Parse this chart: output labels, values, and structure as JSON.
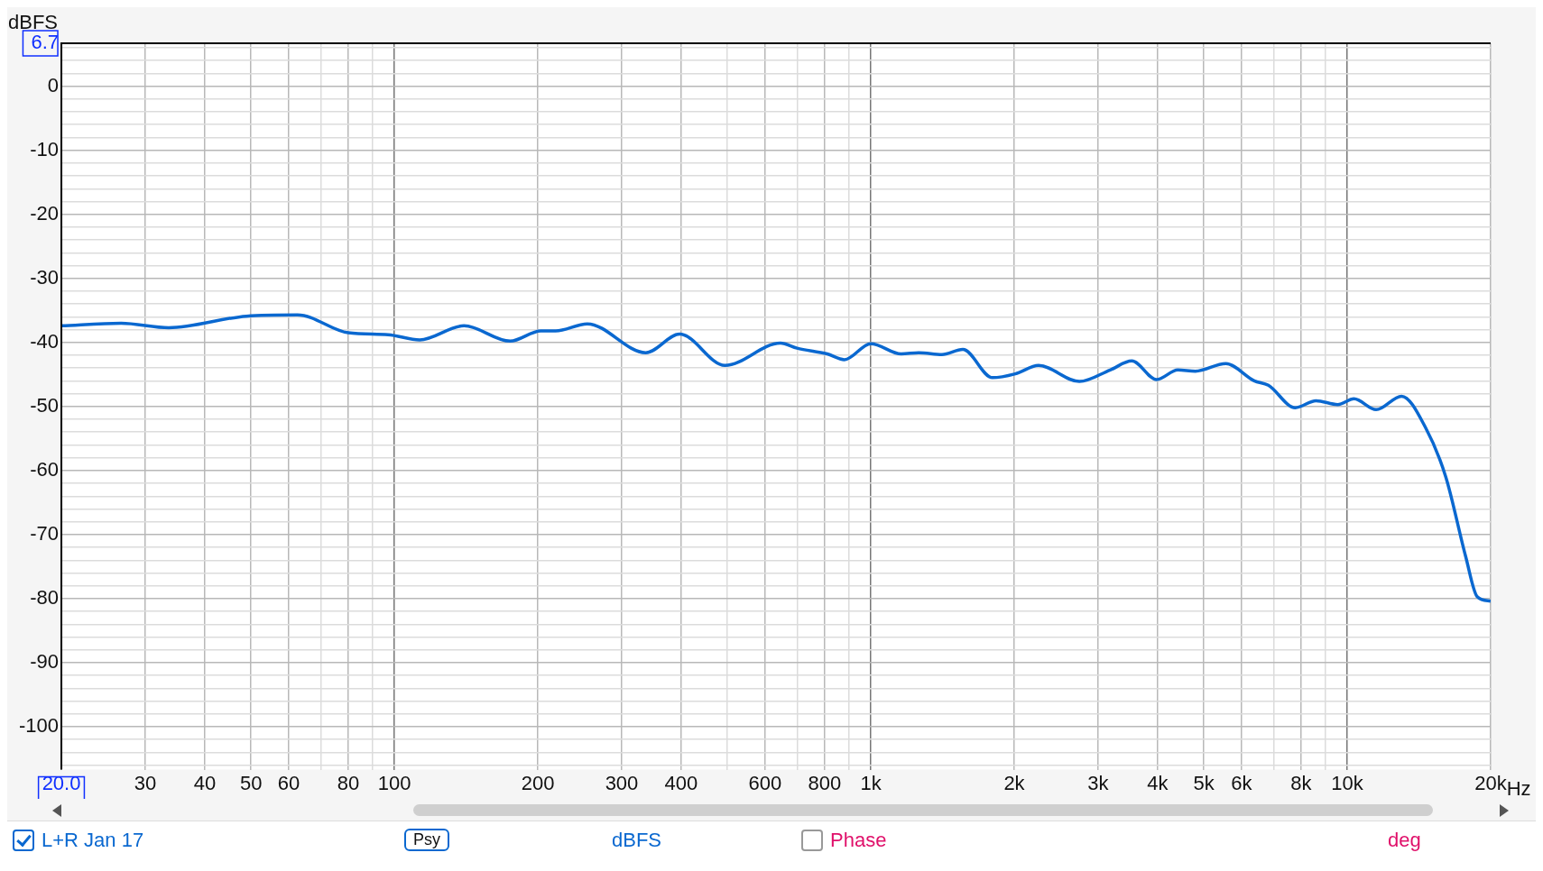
{
  "chart_data": {
    "type": "line",
    "ylabel": "dBFS",
    "log": "x",
    "grid": true,
    "legend": "bottom",
    "marker": "none",
    "line_style": "solid",
    "xlim": [
      20,
      20000
    ],
    "ylim": [
      -106.7,
      6.7
    ],
    "xticks": [
      {
        "value": 20,
        "label": "20.0"
      },
      30,
      40,
      50,
      60,
      {
        "value": 70,
        "label": null
      },
      80,
      {
        "value": 90,
        "label": null
      },
      100,
      200,
      300,
      400,
      {
        "value": 500,
        "label": null
      },
      600,
      {
        "value": 700,
        "label": null
      },
      800,
      {
        "value": 900,
        "label": null
      },
      {
        "value": 1000,
        "label": "1k"
      },
      {
        "value": 2000,
        "label": "2k"
      },
      {
        "value": 3000,
        "label": "3k"
      },
      {
        "value": 4000,
        "label": "4k"
      },
      {
        "value": 5000,
        "label": "5k"
      },
      {
        "value": 6000,
        "label": "6k"
      },
      {
        "value": 7000,
        "label": null
      },
      {
        "value": 8000,
        "label": "8k"
      },
      {
        "value": 9000,
        "label": null
      },
      {
        "value": 10000,
        "label": "10k"
      },
      {
        "value": 20000,
        "label": "20k"
      }
    ],
    "xlabel": "Hz",
    "yticks": [
      6.7,
      {
        "value": 6,
        "label": null
      },
      {
        "value": 4,
        "label": null
      },
      {
        "value": 2,
        "label": null
      },
      0,
      {
        "value": -2,
        "label": null
      },
      {
        "value": -4,
        "label": null
      },
      {
        "value": -6,
        "label": null
      },
      {
        "value": -8,
        "label": null
      },
      -10,
      {
        "value": -12,
        "label": null
      },
      {
        "value": -14,
        "label": null
      },
      {
        "value": -16,
        "label": null
      },
      {
        "value": -18,
        "label": null
      },
      -20,
      {
        "value": -22,
        "label": null
      },
      {
        "value": -24,
        "label": null
      },
      {
        "value": -26,
        "label": null
      },
      {
        "value": -28,
        "label": null
      },
      -30,
      {
        "value": -32,
        "label": null
      },
      {
        "value": -34,
        "label": null
      },
      {
        "value": -36,
        "label": null
      },
      {
        "value": -38,
        "label": null
      },
      -40,
      {
        "value": -42,
        "label": null
      },
      {
        "value": -44,
        "label": null
      },
      {
        "value": -46,
        "label": null
      },
      {
        "value": -48,
        "label": null
      },
      -50,
      {
        "value": -52,
        "label": null
      },
      {
        "value": -54,
        "label": null
      },
      {
        "value": -56,
        "label": null
      },
      {
        "value": -58,
        "label": null
      },
      -60,
      {
        "value": -62,
        "label": null
      },
      {
        "value": -64,
        "label": null
      },
      {
        "value": -66,
        "label": null
      },
      {
        "value": -68,
        "label": null
      },
      -70,
      {
        "value": -72,
        "label": null
      },
      {
        "value": -74,
        "label": null
      },
      {
        "value": -76,
        "label": null
      },
      {
        "value": -78,
        "label": null
      },
      -80,
      {
        "value": -82,
        "label": null
      },
      {
        "value": -84,
        "label": null
      },
      {
        "value": -86,
        "label": null
      },
      {
        "value": -88,
        "label": null
      },
      -90,
      {
        "value": -92,
        "label": null
      },
      {
        "value": -94,
        "label": null
      },
      {
        "value": -96,
        "label": null
      },
      {
        "value": -98,
        "label": null
      },
      -100,
      {
        "value": -102,
        "label": null
      },
      {
        "value": -104,
        "label": null
      },
      {
        "value": -106,
        "label": null
      }
    ],
    "series": [
      {
        "name": "L+R Jan 17",
        "color": "#0a68d0",
        "x": [
          20,
          26.7,
          33.6,
          48.9,
          62.6,
          80,
          97,
          113,
          140,
          175,
          203,
          218,
          254,
          337,
          397,
          494,
          646,
          700,
          810,
          880,
          1000,
          1158,
          1264,
          1410,
          1560,
          1800,
          2010,
          2250,
          2740,
          3180,
          3530,
          3980,
          4410,
          4800,
          5560,
          6380,
          6830,
          7780,
          8600,
          9550,
          10330,
          11500,
          13000,
          14600,
          16100,
          17720,
          18740,
          20000
        ],
        "values": [
          -37.4,
          -37.0,
          -37.7,
          -35.9,
          -35.7,
          -38.5,
          -38.8,
          -39.6,
          -37.4,
          -39.8,
          -38.2,
          -38.2,
          -37.1,
          -41.6,
          -38.7,
          -43.6,
          -40.1,
          -40.9,
          -41.8,
          -42.7,
          -40.2,
          -41.8,
          -41.6,
          -41.9,
          -41.1,
          -45.5,
          -44.9,
          -43.6,
          -46.1,
          -44.3,
          -42.9,
          -45.8,
          -44.3,
          -44.5,
          -43.3,
          -46.0,
          -46.7,
          -50.2,
          -49.1,
          -49.7,
          -48.8,
          -50.5,
          -48.4,
          -53.3,
          -61.0,
          -73.4,
          -79.7,
          -80.4
        ]
      }
    ],
    "annotations": [
      "Psy",
      "dBFS",
      "Phase",
      "deg"
    ]
  }
}
